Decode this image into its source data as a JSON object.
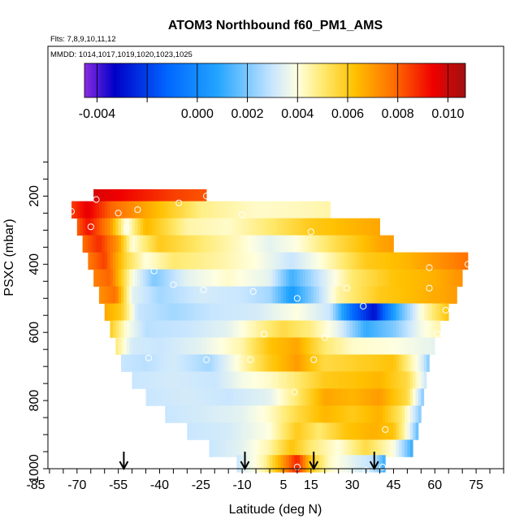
{
  "chart_data": {
    "type": "heatmap",
    "title": "ATOM3 Northbound f60_PM1_AMS",
    "subtitle_flights": "Flts: 7,8,9,10,11,12",
    "subtitle_dates": "MMDD: 1014,1017,1019,1020,1023,1025",
    "xlabel": "Latitude (deg N)",
    "ylabel": "PSXC (mbar)",
    "xlim": [
      -85,
      85
    ],
    "ylim": [
      1000,
      100
    ],
    "x_tick_labels": [
      "-85",
      "-70",
      "-55",
      "-40",
      "-25",
      "-10",
      "5",
      "15",
      "30",
      "45",
      "60",
      "75"
    ],
    "x_tick_values": [
      -85,
      -70,
      -55,
      -40,
      -25,
      -10,
      5,
      15,
      30,
      45,
      60,
      75
    ],
    "x_minor_step": 5,
    "y_tick_labels": [
      "200",
      "400",
      "600",
      "800",
      "1000"
    ],
    "y_tick_values": [
      200,
      400,
      600,
      800,
      1000
    ],
    "y_minor_step": 50,
    "colorbar": {
      "range": [
        -0.0045,
        0.0107
      ],
      "tick_labels": [
        "-0.004",
        "0.000",
        "0.002",
        "0.004",
        "0.006",
        "0.008",
        "0.010"
      ],
      "tick_values": [
        -0.004,
        0.0,
        0.002,
        0.004,
        0.006,
        0.008,
        0.01
      ],
      "minor_tick_values": [
        -0.002
      ],
      "color_stops": [
        {
          "v": -0.0045,
          "c": "#8a2be2"
        },
        {
          "v": -0.0033,
          "c": "#0000c8"
        },
        {
          "v": -0.0012,
          "c": "#0066ff"
        },
        {
          "v": 0.0008,
          "c": "#22a4ff"
        },
        {
          "v": 0.003,
          "c": "#c9e6ff"
        },
        {
          "v": 0.004,
          "c": "#ffffe0"
        },
        {
          "v": 0.005,
          "c": "#ffea70"
        },
        {
          "v": 0.0063,
          "c": "#ffc000"
        },
        {
          "v": 0.0078,
          "c": "#ff7000"
        },
        {
          "v": 0.0094,
          "c": "#f00000"
        },
        {
          "v": 0.0107,
          "c": "#a01010"
        }
      ]
    },
    "curtain_rows": [
      {
        "p": 205,
        "lat_min": -64,
        "lat_max": -23,
        "knots": [
          [
            -64,
            0.0098
          ],
          [
            -50,
            0.0092
          ],
          [
            -35,
            0.0085
          ],
          [
            -23,
            0.0082
          ]
        ]
      },
      {
        "p": 240,
        "lat_min": -72,
        "lat_max": 22,
        "knots": [
          [
            -72,
            0.0085
          ],
          [
            -66,
            0.0096
          ],
          [
            -58,
            0.008
          ],
          [
            -45,
            0.0068
          ],
          [
            -25,
            0.0048
          ],
          [
            -5,
            0.0042
          ],
          [
            10,
            0.0043
          ],
          [
            22,
            0.0045
          ]
        ]
      },
      {
        "p": 290,
        "lat_min": -70,
        "lat_max": 40,
        "knots": [
          [
            -70,
            0.008
          ],
          [
            -66,
            0.0092
          ],
          [
            -58,
            0.0072
          ],
          [
            -52,
            0.0038
          ],
          [
            -45,
            0.0065
          ],
          [
            -30,
            0.0045
          ],
          [
            -15,
            0.0042
          ],
          [
            0,
            0.005
          ],
          [
            15,
            0.006
          ],
          [
            30,
            0.0065
          ],
          [
            40,
            0.0068
          ]
        ]
      },
      {
        "p": 340,
        "lat_min": -68,
        "lat_max": 45,
        "knots": [
          [
            -68,
            0.0078
          ],
          [
            -62,
            0.0088
          ],
          [
            -55,
            0.007
          ],
          [
            -50,
            0.004
          ],
          [
            -40,
            0.006
          ],
          [
            -25,
            0.005
          ],
          [
            -10,
            0.0042
          ],
          [
            0,
            0.0035
          ],
          [
            10,
            0.004
          ],
          [
            25,
            0.0055
          ],
          [
            40,
            0.0068
          ],
          [
            45,
            0.007
          ]
        ]
      },
      {
        "p": 390,
        "lat_min": -66,
        "lat_max": 72,
        "knots": [
          [
            -66,
            0.0076
          ],
          [
            -60,
            0.0085
          ],
          [
            -52,
            0.0055
          ],
          [
            -45,
            0.004
          ],
          [
            -35,
            0.005
          ],
          [
            -20,
            0.0046
          ],
          [
            -5,
            0.004
          ],
          [
            8,
            0.003
          ],
          [
            20,
            0.0042
          ],
          [
            35,
            0.006
          ],
          [
            50,
            0.0065
          ],
          [
            62,
            0.0072
          ],
          [
            72,
            0.0078
          ]
        ]
      },
      {
        "p": 440,
        "lat_min": -64,
        "lat_max": 70,
        "knots": [
          [
            -64,
            0.0075
          ],
          [
            -58,
            0.008
          ],
          [
            -50,
            0.004
          ],
          [
            -42,
            0.002
          ],
          [
            -30,
            0.0035
          ],
          [
            -15,
            0.0042
          ],
          [
            0,
            0.0035
          ],
          [
            8,
            0.0012
          ],
          [
            18,
            0.003
          ],
          [
            30,
            0.005
          ],
          [
            45,
            0.0062
          ],
          [
            60,
            0.0066
          ],
          [
            70,
            0.0072
          ]
        ]
      },
      {
        "p": 490,
        "lat_min": -62,
        "lat_max": 68,
        "knots": [
          [
            -62,
            0.0072
          ],
          [
            -56,
            0.0078
          ],
          [
            -50,
            0.0035
          ],
          [
            -40,
            0.0025
          ],
          [
            -25,
            0.0032
          ],
          [
            -10,
            0.003
          ],
          [
            0,
            0.0025
          ],
          [
            8,
            0.0005
          ],
          [
            15,
            0.002
          ],
          [
            25,
            0.0045
          ],
          [
            40,
            0.006
          ],
          [
            55,
            0.0065
          ],
          [
            68,
            0.007
          ]
        ]
      },
      {
        "p": 540,
        "lat_min": -60,
        "lat_max": 65,
        "knots": [
          [
            -60,
            0.0068
          ],
          [
            -54,
            0.006
          ],
          [
            -48,
            0.003
          ],
          [
            -35,
            0.0025
          ],
          [
            -20,
            0.003
          ],
          [
            -5,
            0.0032
          ],
          [
            10,
            0.004
          ],
          [
            22,
            0.003
          ],
          [
            30,
            -0.001
          ],
          [
            38,
            -0.003
          ],
          [
            46,
            0.001
          ],
          [
            55,
            0.004
          ],
          [
            65,
            0.0062
          ]
        ]
      },
      {
        "p": 590,
        "lat_min": -58,
        "lat_max": 62,
        "knots": [
          [
            -58,
            0.006
          ],
          [
            -52,
            0.004
          ],
          [
            -45,
            0.0028
          ],
          [
            -30,
            0.003
          ],
          [
            -15,
            0.0035
          ],
          [
            -5,
            0.0045
          ],
          [
            5,
            0.0055
          ],
          [
            15,
            0.0048
          ],
          [
            25,
            0.0035
          ],
          [
            35,
            0.001
          ],
          [
            45,
            0.002
          ],
          [
            55,
            0.0038
          ],
          [
            62,
            0.0045
          ]
        ]
      },
      {
        "p": 640,
        "lat_min": -56,
        "lat_max": 60,
        "knots": [
          [
            -56,
            0.005
          ],
          [
            -50,
            0.0032
          ],
          [
            -40,
            0.003
          ],
          [
            -25,
            0.0035
          ],
          [
            -10,
            0.0045
          ],
          [
            0,
            0.0062
          ],
          [
            10,
            0.0068
          ],
          [
            20,
            0.005
          ],
          [
            30,
            0.0042
          ],
          [
            45,
            0.004
          ],
          [
            60,
            0.0035
          ]
        ]
      },
      {
        "p": 690,
        "lat_min": -54,
        "lat_max": 58,
        "knots": [
          [
            -54,
            0.003
          ],
          [
            -45,
            0.0028
          ],
          [
            -35,
            0.0032
          ],
          [
            -22,
            0.0025
          ],
          [
            -12,
            0.004
          ],
          [
            0,
            0.006
          ],
          [
            10,
            0.007
          ],
          [
            20,
            0.0055
          ],
          [
            30,
            0.0058
          ],
          [
            45,
            0.0062
          ],
          [
            55,
            0.0035
          ],
          [
            58,
            0.002
          ]
        ]
      },
      {
        "p": 740,
        "lat_min": -50,
        "lat_max": 57,
        "knots": [
          [
            -50,
            0.003
          ],
          [
            -35,
            0.0032
          ],
          [
            -20,
            0.003
          ],
          [
            -10,
            0.0038
          ],
          [
            0,
            0.0042
          ],
          [
            10,
            0.005
          ],
          [
            20,
            0.006
          ],
          [
            30,
            0.0062
          ],
          [
            40,
            0.0065
          ],
          [
            50,
            0.0055
          ],
          [
            57,
            0.003
          ]
        ]
      },
      {
        "p": 790,
        "lat_min": -45,
        "lat_max": 56,
        "knots": [
          [
            -45,
            0.003
          ],
          [
            -30,
            0.0032
          ],
          [
            -15,
            0.003
          ],
          [
            0,
            0.0035
          ],
          [
            10,
            0.005
          ],
          [
            20,
            0.0068
          ],
          [
            30,
            0.0065
          ],
          [
            40,
            0.007
          ],
          [
            50,
            0.0055
          ],
          [
            56,
            0.002
          ]
        ]
      },
      {
        "p": 840,
        "lat_min": -38,
        "lat_max": 55,
        "knots": [
          [
            -38,
            0.003
          ],
          [
            -25,
            0.0032
          ],
          [
            -10,
            0.0035
          ],
          [
            0,
            0.0042
          ],
          [
            10,
            0.0055
          ],
          [
            20,
            0.0065
          ],
          [
            30,
            0.006
          ],
          [
            40,
            0.0066
          ],
          [
            48,
            0.005
          ],
          [
            55,
            0.002
          ]
        ]
      },
      {
        "p": 890,
        "lat_min": -30,
        "lat_max": 54,
        "knots": [
          [
            -30,
            0.003
          ],
          [
            -15,
            0.0032
          ],
          [
            0,
            0.004
          ],
          [
            10,
            0.006
          ],
          [
            18,
            0.005
          ],
          [
            28,
            0.0062
          ],
          [
            38,
            0.0066
          ],
          [
            45,
            0.0062
          ],
          [
            50,
            0.004
          ],
          [
            54,
            0.0015
          ]
        ]
      },
      {
        "p": 940,
        "lat_min": -22,
        "lat_max": 52,
        "knots": [
          [
            -22,
            0.003
          ],
          [
            -10,
            0.0035
          ],
          [
            0,
            0.0045
          ],
          [
            8,
            0.0062
          ],
          [
            15,
            0.005
          ],
          [
            25,
            0.004
          ],
          [
            35,
            0.0055
          ],
          [
            45,
            0.004
          ],
          [
            52,
            0.001
          ]
        ]
      },
      {
        "p": 985,
        "lat_min": -12,
        "lat_max": 42,
        "knots": [
          [
            -12,
            0.003
          ],
          [
            -2,
            0.0045
          ],
          [
            6,
            0.0075
          ],
          [
            10,
            0.009
          ],
          [
            15,
            0.006
          ],
          [
            22,
            0.0042
          ],
          [
            30,
            0.0035
          ],
          [
            38,
            0.0028
          ],
          [
            42,
            0.001
          ]
        ]
      }
    ],
    "sample_points": [
      [
        -63,
        210
      ],
      [
        -33,
        220
      ],
      [
        -23,
        200
      ],
      [
        -48,
        240
      ],
      [
        -55,
        250
      ],
      [
        -72,
        245
      ],
      [
        24,
        230
      ],
      [
        -65,
        290
      ],
      [
        -52,
        295
      ],
      [
        -10,
        255
      ],
      [
        15,
        305
      ],
      [
        58,
        410
      ],
      [
        72,
        400
      ],
      [
        -42,
        420
      ],
      [
        -35,
        460
      ],
      [
        -24,
        475
      ],
      [
        -6,
        480
      ],
      [
        10,
        500
      ],
      [
        28,
        470
      ],
      [
        58,
        470
      ],
      [
        34,
        523
      ],
      [
        64,
        535
      ],
      [
        -2,
        605
      ],
      [
        20,
        615
      ],
      [
        61,
        605
      ],
      [
        -44,
        675
      ],
      [
        -23,
        680
      ],
      [
        -7,
        680
      ],
      [
        16,
        680
      ],
      [
        9,
        775
      ],
      [
        42,
        885
      ],
      [
        10,
        995
      ],
      [
        35,
        1005
      ],
      [
        41,
        995
      ]
    ],
    "arrow_latitudes": [
      -53,
      -9,
      16,
      38
    ]
  }
}
